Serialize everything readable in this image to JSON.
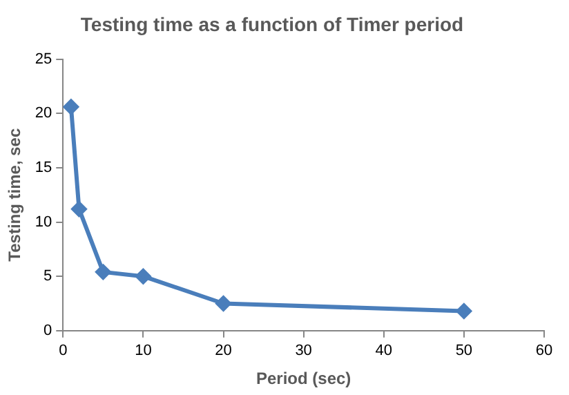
{
  "chart_data": {
    "type": "line",
    "title": "Testing time as a function of Timer period",
    "xlabel": "Period (sec)",
    "ylabel": "Testing time, sec",
    "x": [
      1,
      2,
      5,
      10,
      20,
      50
    ],
    "series": [
      {
        "color": "#4a7ebb",
        "values": [
          20.6,
          11.2,
          5.4,
          5.0,
          2.5,
          1.8
        ]
      }
    ],
    "xlim": [
      0,
      60
    ],
    "xticks": [
      0,
      10,
      20,
      30,
      40,
      50,
      60
    ],
    "ylim": [
      0,
      25
    ],
    "yticks": [
      0,
      5,
      10,
      15,
      20,
      25
    ],
    "grid": false,
    "legend": false,
    "marker": "diamond",
    "line_style": "solid"
  }
}
